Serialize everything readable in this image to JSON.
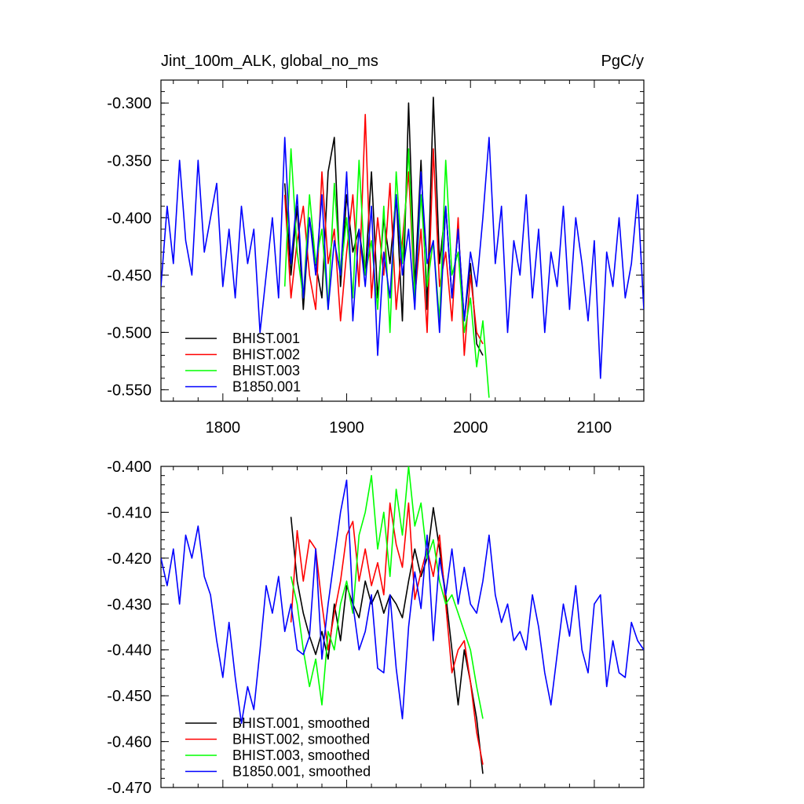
{
  "title_left": "Jint_100m_ALK, global_no_ms",
  "title_right": "PgC/y",
  "chart_data": [
    {
      "type": "line",
      "xlim": [
        1750,
        2140
      ],
      "ylim": [
        -0.56,
        -0.28
      ],
      "x_ticks": [
        1800,
        1900,
        2000,
        2100
      ],
      "x_tick_labels": [
        "1800",
        "1900",
        "2000",
        "2100"
      ],
      "y_ticks": [
        -0.3,
        -0.35,
        -0.4,
        -0.45,
        -0.5,
        -0.55
      ],
      "y_tick_labels": [
        "-0.300",
        "-0.350",
        "-0.400",
        "-0.450",
        "-0.500",
        "-0.550"
      ],
      "legend": "lower-left",
      "grid": false,
      "series": [
        {
          "name": "BHIST.001",
          "color": "#000000",
          "x": [
            1850,
            1855,
            1860,
            1865,
            1870,
            1875,
            1880,
            1885,
            1890,
            1895,
            1900,
            1905,
            1910,
            1915,
            1920,
            1925,
            1930,
            1935,
            1940,
            1945,
            1950,
            1955,
            1960,
            1965,
            1970,
            1975,
            1980,
            1985,
            1990,
            1995,
            2000,
            2005,
            2010
          ],
          "y": [
            -0.37,
            -0.45,
            -0.39,
            -0.48,
            -0.4,
            -0.44,
            -0.47,
            -0.36,
            -0.33,
            -0.46,
            -0.38,
            -0.43,
            -0.41,
            -0.45,
            -0.36,
            -0.47,
            -0.4,
            -0.44,
            -0.38,
            -0.49,
            -0.3,
            -0.46,
            -0.35,
            -0.48,
            -0.295,
            -0.44,
            -0.39,
            -0.47,
            -0.41,
            -0.49,
            -0.44,
            -0.51,
            -0.52
          ]
        },
        {
          "name": "BHIST.002",
          "color": "#ff0000",
          "x": [
            1850,
            1855,
            1860,
            1865,
            1870,
            1875,
            1880,
            1885,
            1890,
            1895,
            1900,
            1905,
            1910,
            1915,
            1920,
            1925,
            1930,
            1935,
            1940,
            1945,
            1950,
            1955,
            1960,
            1965,
            1970,
            1975,
            1980,
            1985,
            1990,
            1995,
            2000,
            2005,
            2010
          ],
          "y": [
            -0.38,
            -0.47,
            -0.42,
            -0.39,
            -0.45,
            -0.48,
            -0.36,
            -0.44,
            -0.41,
            -0.49,
            -0.43,
            -0.38,
            -0.46,
            -0.31,
            -0.47,
            -0.4,
            -0.45,
            -0.37,
            -0.48,
            -0.42,
            -0.36,
            -0.47,
            -0.41,
            -0.5,
            -0.34,
            -0.46,
            -0.43,
            -0.49,
            -0.4,
            -0.52,
            -0.45,
            -0.5,
            -0.51
          ]
        },
        {
          "name": "BHIST.003",
          "color": "#00ff00",
          "x": [
            1850,
            1855,
            1860,
            1865,
            1870,
            1875,
            1880,
            1885,
            1890,
            1895,
            1900,
            1905,
            1910,
            1915,
            1920,
            1925,
            1930,
            1935,
            1940,
            1945,
            1950,
            1955,
            1960,
            1965,
            1970,
            1975,
            1980,
            1985,
            1990,
            1995,
            2000,
            2005,
            2010,
            2015
          ],
          "y": [
            -0.46,
            -0.34,
            -0.43,
            -0.47,
            -0.38,
            -0.44,
            -0.41,
            -0.48,
            -0.37,
            -0.45,
            -0.4,
            -0.47,
            -0.35,
            -0.45,
            -0.42,
            -0.48,
            -0.39,
            -0.5,
            -0.36,
            -0.44,
            -0.34,
            -0.47,
            -0.38,
            -0.46,
            -0.42,
            -0.49,
            -0.35,
            -0.45,
            -0.43,
            -0.5,
            -0.47,
            -0.53,
            -0.49,
            -0.557
          ]
        },
        {
          "name": "B1850.001",
          "color": "#0000ff",
          "x": [
            1750,
            1755,
            1760,
            1765,
            1770,
            1775,
            1780,
            1785,
            1790,
            1795,
            1800,
            1805,
            1810,
            1815,
            1820,
            1825,
            1830,
            1835,
            1840,
            1845,
            1850,
            1855,
            1860,
            1865,
            1870,
            1875,
            1880,
            1885,
            1890,
            1895,
            1900,
            1905,
            1910,
            1915,
            1920,
            1925,
            1930,
            1935,
            1940,
            1945,
            1950,
            1955,
            1960,
            1965,
            1970,
            1975,
            1980,
            1985,
            1990,
            1995,
            2000,
            2005,
            2010,
            2015,
            2020,
            2025,
            2030,
            2035,
            2040,
            2045,
            2050,
            2055,
            2060,
            2065,
            2070,
            2075,
            2080,
            2085,
            2090,
            2095,
            2100,
            2105,
            2110,
            2115,
            2120,
            2125,
            2130,
            2135,
            2140
          ],
          "y": [
            -0.46,
            -0.39,
            -0.44,
            -0.35,
            -0.42,
            -0.45,
            -0.35,
            -0.43,
            -0.4,
            -0.37,
            -0.46,
            -0.41,
            -0.47,
            -0.39,
            -0.44,
            -0.41,
            -0.5,
            -0.45,
            -0.4,
            -0.47,
            -0.33,
            -0.44,
            -0.38,
            -0.47,
            -0.4,
            -0.45,
            -0.38,
            -0.48,
            -0.42,
            -0.45,
            -0.36,
            -0.49,
            -0.41,
            -0.46,
            -0.39,
            -0.52,
            -0.43,
            -0.47,
            -0.38,
            -0.45,
            -0.41,
            -0.48,
            -0.36,
            -0.44,
            -0.42,
            -0.5,
            -0.39,
            -0.47,
            -0.41,
            -0.49,
            -0.43,
            -0.46,
            -0.4,
            -0.33,
            -0.44,
            -0.39,
            -0.5,
            -0.42,
            -0.45,
            -0.38,
            -0.47,
            -0.41,
            -0.5,
            -0.43,
            -0.46,
            -0.39,
            -0.48,
            -0.4,
            -0.44,
            -0.49,
            -0.42,
            -0.54,
            -0.43,
            -0.46,
            -0.4,
            -0.47,
            -0.44,
            -0.38,
            -0.48
          ]
        }
      ]
    },
    {
      "type": "line",
      "xlim": [
        1750,
        2140
      ],
      "ylim": [
        -0.47,
        -0.4
      ],
      "y_ticks": [
        -0.4,
        -0.41,
        -0.42,
        -0.43,
        -0.44,
        -0.45,
        -0.46,
        -0.47
      ],
      "y_tick_labels": [
        "-0.400",
        "-0.410",
        "-0.420",
        "-0.430",
        "-0.440",
        "-0.450",
        "-0.460",
        "-0.470"
      ],
      "legend": "lower-left",
      "grid": false,
      "series": [
        {
          "name": "BHIST.001, smoothed",
          "color": "#000000",
          "x": [
            1855,
            1860,
            1865,
            1870,
            1875,
            1880,
            1885,
            1890,
            1895,
            1900,
            1905,
            1910,
            1915,
            1920,
            1925,
            1930,
            1935,
            1940,
            1945,
            1950,
            1955,
            1960,
            1965,
            1970,
            1975,
            1980,
            1985,
            1990,
            1995,
            2000,
            2005,
            2010
          ],
          "y": [
            -0.411,
            -0.425,
            -0.432,
            -0.437,
            -0.441,
            -0.436,
            -0.442,
            -0.43,
            -0.438,
            -0.426,
            -0.43,
            -0.433,
            -0.425,
            -0.43,
            -0.427,
            -0.432,
            -0.428,
            -0.43,
            -0.433,
            -0.425,
            -0.418,
            -0.424,
            -0.42,
            -0.409,
            -0.418,
            -0.428,
            -0.44,
            -0.452,
            -0.44,
            -0.447,
            -0.455,
            -0.467
          ]
        },
        {
          "name": "BHIST.002, smoothed",
          "color": "#ff0000",
          "x": [
            1855,
            1860,
            1865,
            1870,
            1875,
            1880,
            1885,
            1890,
            1895,
            1900,
            1905,
            1910,
            1915,
            1920,
            1925,
            1930,
            1935,
            1940,
            1945,
            1950,
            1955,
            1960,
            1965,
            1970,
            1975,
            1980,
            1985,
            1990,
            1995,
            2000,
            2005,
            2010
          ],
          "y": [
            -0.434,
            -0.414,
            -0.425,
            -0.416,
            -0.418,
            -0.43,
            -0.44,
            -0.432,
            -0.425,
            -0.415,
            -0.412,
            -0.425,
            -0.418,
            -0.426,
            -0.421,
            -0.428,
            -0.408,
            -0.417,
            -0.422,
            -0.408,
            -0.429,
            -0.423,
            -0.418,
            -0.424,
            -0.415,
            -0.43,
            -0.445,
            -0.44,
            -0.438,
            -0.447,
            -0.458,
            -0.465
          ]
        },
        {
          "name": "BHIST.003, smoothed",
          "color": "#00ff00",
          "x": [
            1855,
            1860,
            1865,
            1870,
            1875,
            1880,
            1885,
            1890,
            1895,
            1900,
            1905,
            1910,
            1915,
            1920,
            1925,
            1930,
            1935,
            1940,
            1945,
            1950,
            1955,
            1960,
            1965,
            1970,
            1975,
            1980,
            1985,
            1990,
            1995,
            2000,
            2005,
            2010
          ],
          "y": [
            -0.424,
            -0.43,
            -0.44,
            -0.448,
            -0.442,
            -0.452,
            -0.436,
            -0.44,
            -0.43,
            -0.425,
            -0.432,
            -0.415,
            -0.41,
            -0.402,
            -0.418,
            -0.41,
            -0.424,
            -0.405,
            -0.415,
            -0.4,
            -0.413,
            -0.408,
            -0.42,
            -0.416,
            -0.425,
            -0.43,
            -0.428,
            -0.432,
            -0.436,
            -0.44,
            -0.448,
            -0.455
          ]
        },
        {
          "name": "B1850.001, smoothed",
          "color": "#0000ff",
          "x": [
            1750,
            1755,
            1760,
            1765,
            1770,
            1775,
            1780,
            1785,
            1790,
            1795,
            1800,
            1805,
            1810,
            1815,
            1820,
            1825,
            1830,
            1835,
            1840,
            1845,
            1850,
            1855,
            1860,
            1865,
            1870,
            1875,
            1880,
            1885,
            1890,
            1895,
            1900,
            1905,
            1910,
            1915,
            1920,
            1925,
            1930,
            1935,
            1940,
            1945,
            1950,
            1955,
            1960,
            1965,
            1970,
            1975,
            1980,
            1985,
            1990,
            1995,
            2000,
            2005,
            2010,
            2015,
            2020,
            2025,
            2030,
            2035,
            2040,
            2045,
            2050,
            2055,
            2060,
            2065,
            2070,
            2075,
            2080,
            2085,
            2090,
            2095,
            2100,
            2105,
            2110,
            2115,
            2120,
            2125,
            2130,
            2135,
            2140
          ],
          "y": [
            -0.42,
            -0.426,
            -0.418,
            -0.43,
            -0.415,
            -0.42,
            -0.413,
            -0.424,
            -0.428,
            -0.438,
            -0.446,
            -0.434,
            -0.446,
            -0.456,
            -0.448,
            -0.453,
            -0.44,
            -0.426,
            -0.432,
            -0.424,
            -0.436,
            -0.43,
            -0.44,
            -0.441,
            -0.437,
            -0.418,
            -0.442,
            -0.43,
            -0.42,
            -0.41,
            -0.403,
            -0.43,
            -0.44,
            -0.436,
            -0.428,
            -0.444,
            -0.445,
            -0.428,
            -0.444,
            -0.455,
            -0.435,
            -0.423,
            -0.431,
            -0.415,
            -0.438,
            -0.42,
            -0.428,
            -0.418,
            -0.43,
            -0.422,
            -0.43,
            -0.432,
            -0.425,
            -0.415,
            -0.428,
            -0.434,
            -0.43,
            -0.438,
            -0.436,
            -0.44,
            -0.428,
            -0.435,
            -0.445,
            -0.452,
            -0.441,
            -0.43,
            -0.437,
            -0.426,
            -0.44,
            -0.445,
            -0.43,
            -0.428,
            -0.448,
            -0.438,
            -0.445,
            -0.446,
            -0.434,
            -0.438,
            -0.44
          ]
        }
      ]
    }
  ]
}
